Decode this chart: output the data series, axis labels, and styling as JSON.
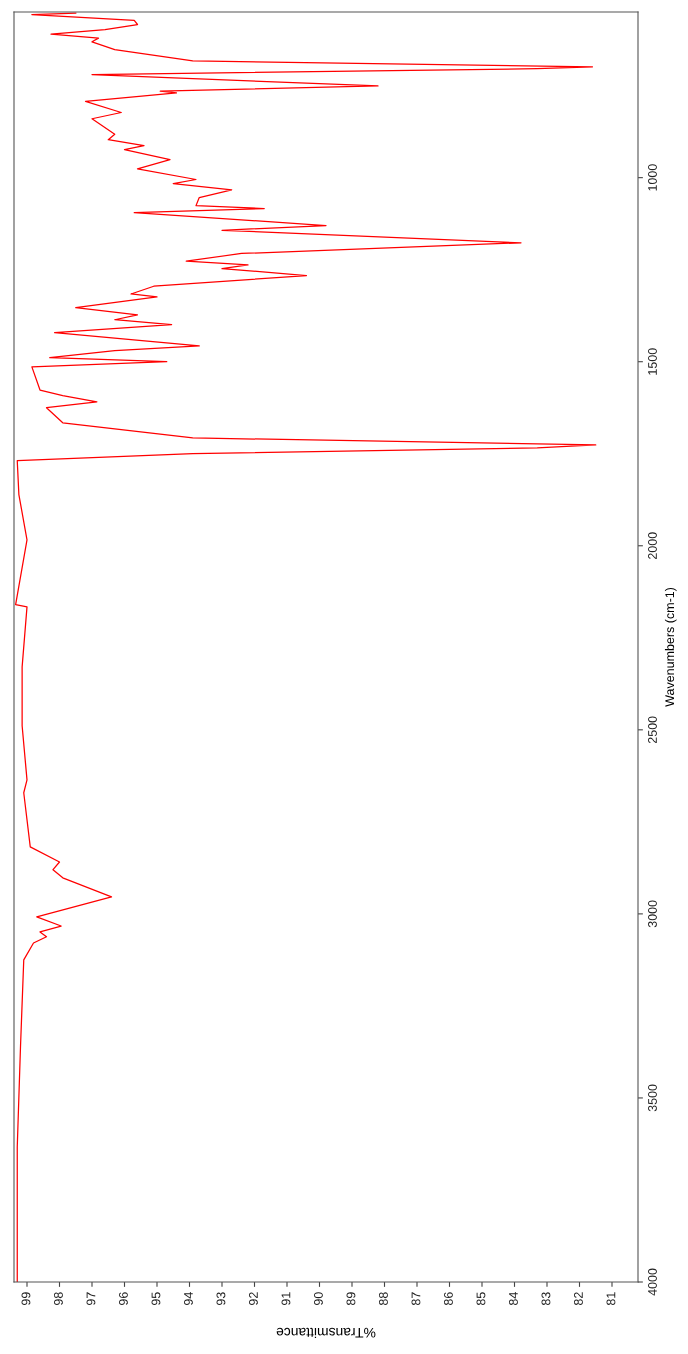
{
  "chart_data": {
    "type": "line",
    "xlabel": "%Transmittance",
    "ylabel": "Wavenumbers (cm-1)",
    "ylim": [
      4000,
      550
    ],
    "yticks": [
      1000,
      1500,
      2000,
      2500,
      3000,
      3500,
      4000
    ],
    "xlim": [
      99.4,
      80.2
    ],
    "xticks": [
      99,
      98,
      97,
      96,
      95,
      94,
      93,
      92,
      91,
      90,
      89,
      88,
      87,
      86,
      85,
      84,
      83,
      82,
      81
    ],
    "grid": false,
    "legend": false,
    "series": [
      {
        "color": "#ff0000",
        "values": [
          553,
          557,
          573,
          584,
          598,
          610,
          621,
          631,
          652,
          683,
          699,
          704,
          720,
          751,
          765,
          770,
          793,
          823,
          840,
          882,
          897,
          913,
          924,
          951,
          976,
          1005,
          1016,
          1033,
          1054,
          1076,
          1084,
          1095,
          1130,
          1143,
          1177,
          1206,
          1227,
          1237,
          1247,
          1266,
          1295,
          1316,
          1324,
          1353,
          1373,
          1386,
          1399,
          1421,
          1457,
          1470,
          1489,
          1500,
          1514,
          1577,
          1592,
          1609,
          1625,
          1666,
          1707,
          1726,
          1734,
          1750,
          1769,
          1861,
          1984,
          2160,
          2166,
          2329,
          2489,
          2636,
          2671,
          2818,
          2859,
          2880,
          2902,
          2954,
          3008,
          3033,
          3049,
          3062,
          3079,
          3125,
          3361,
          3633,
          3948,
          4000
        ],
        "x": [
          97.5,
          98.85,
          95.7,
          95.6,
          96.6,
          98.26,
          96.8,
          97.0,
          96.3,
          93.9,
          81.6,
          83.3,
          97.0,
          88.2,
          94.9,
          94.4,
          97.2,
          96.1,
          97.0,
          96.3,
          96.5,
          95.4,
          96.0,
          94.6,
          95.6,
          93.8,
          94.5,
          92.7,
          93.7,
          93.8,
          91.7,
          95.7,
          89.8,
          93.0,
          83.8,
          92.4,
          94.1,
          92.2,
          93.0,
          90.4,
          95.1,
          95.8,
          95.0,
          97.5,
          95.6,
          96.3,
          94.55,
          98.15,
          93.7,
          96.3,
          98.3,
          94.7,
          98.85,
          98.6,
          97.9,
          96.85,
          98.4,
          97.9,
          93.9,
          81.5,
          83.3,
          93.9,
          99.3,
          99.25,
          99.0,
          99.35,
          99.0,
          99.15,
          99.15,
          99.0,
          99.1,
          98.9,
          98.0,
          98.2,
          97.9,
          96.4,
          98.7,
          97.95,
          98.6,
          98.4,
          98.8,
          99.1,
          99.2,
          99.3,
          99.3,
          99.3
        ]
      }
    ]
  }
}
